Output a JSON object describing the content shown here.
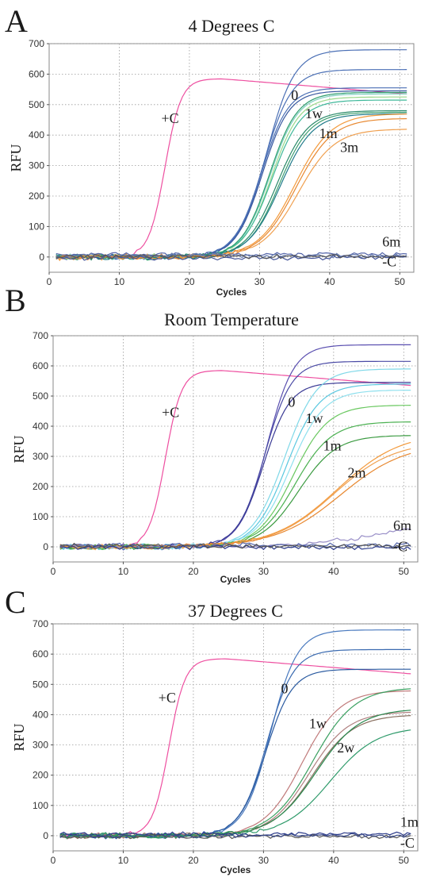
{
  "chart_data": [
    {
      "type": "line",
      "panel_letter": "A",
      "title": "4 Degrees C",
      "xlabel": "Cycles",
      "ylabel": "RFU",
      "xlim": [
        0,
        52
      ],
      "ylim": [
        -50,
        700
      ],
      "xticks": [
        0,
        10,
        20,
        30,
        40,
        50
      ],
      "yticks": [
        0,
        100,
        200,
        300,
        400,
        500,
        600,
        700
      ],
      "grid": true,
      "annotations": [
        {
          "text": "+C",
          "x": 16.0,
          "y": 440
        },
        {
          "text": "0",
          "x": 34.5,
          "y": 515
        },
        {
          "text": "1w",
          "x": 36.5,
          "y": 455
        },
        {
          "text": "1m",
          "x": 38.5,
          "y": 390
        },
        {
          "text": "3m",
          "x": 41.5,
          "y": 345
        },
        {
          "text": "6m",
          "x": 47.5,
          "y": 35
        },
        {
          "text": "-C",
          "x": 47.5,
          "y": -30
        }
      ],
      "series": [
        {
          "group": "+C",
          "color": "#ee4fa0",
          "ct": 16.5,
          "plateau": 585,
          "slope": 1.15,
          "drift": -50
        },
        {
          "group": "0",
          "color": "#4a6fb5",
          "ct": 31.0,
          "plateau": 680,
          "slope": 2.0
        },
        {
          "group": "0",
          "color": "#4a6fb5",
          "ct": 30.6,
          "plateau": 615,
          "slope": 2.0
        },
        {
          "group": "0",
          "color": "#4a6fb5",
          "ct": 30.3,
          "plateau": 555,
          "slope": 1.9
        },
        {
          "group": "0",
          "color": "#3a5aa0",
          "ct": 30.4,
          "plateau": 545,
          "slope": 1.9
        },
        {
          "group": "1w",
          "color": "#7ecfc0",
          "ct": 31.5,
          "plateau": 535,
          "slope": 2.0
        },
        {
          "group": "1w",
          "color": "#9ad88a",
          "ct": 31.7,
          "plateau": 525,
          "slope": 2.0
        },
        {
          "group": "1w",
          "color": "#3fb89a",
          "ct": 31.8,
          "plateau": 515,
          "slope": 2.1
        },
        {
          "group": "1w",
          "color": "#2f9e6e",
          "ct": 31.4,
          "plateau": 540,
          "slope": 2.0
        },
        {
          "group": "1m",
          "color": "#2a8a6a",
          "ct": 32.5,
          "plateau": 480,
          "slope": 2.2
        },
        {
          "group": "1m",
          "color": "#3ea070",
          "ct": 32.8,
          "plateau": 475,
          "slope": 2.2
        },
        {
          "group": "1m",
          "color": "#1f7a8a",
          "ct": 33.0,
          "plateau": 470,
          "slope": 2.3
        },
        {
          "group": "3m",
          "color": "#f39a3c",
          "ct": 35.0,
          "plateau": 470,
          "slope": 2.6
        },
        {
          "group": "3m",
          "color": "#f0a050",
          "ct": 35.5,
          "plateau": 420,
          "slope": 2.6
        },
        {
          "group": "3m",
          "color": "#e88830",
          "ct": 35.2,
          "plateau": 455,
          "slope": 2.6
        },
        {
          "group": "6m",
          "color": "#5566aa",
          "flat": 8
        },
        {
          "group": "6m",
          "color": "#6a7fb0",
          "flat": 4
        },
        {
          "group": "-C",
          "color": "#445599",
          "flat": -3
        },
        {
          "group": "-C",
          "color": "#555555",
          "flat": 2
        }
      ]
    },
    {
      "type": "line",
      "panel_letter": "B",
      "title": "Room Temperature",
      "xlabel": "Cycles",
      "ylabel": "RFU",
      "xlim": [
        0,
        52
      ],
      "ylim": [
        -50,
        700
      ],
      "xticks": [
        0,
        10,
        20,
        30,
        40,
        50
      ],
      "yticks": [
        0,
        100,
        200,
        300,
        400,
        500,
        600,
        700
      ],
      "grid": true,
      "annotations": [
        {
          "text": "+C",
          "x": 15.5,
          "y": 430
        },
        {
          "text": "0",
          "x": 33.5,
          "y": 465
        },
        {
          "text": "1w",
          "x": 36.0,
          "y": 410
        },
        {
          "text": "1m",
          "x": 38.5,
          "y": 320
        },
        {
          "text": "2m",
          "x": 42.0,
          "y": 230
        },
        {
          "text": "6m",
          "x": 48.5,
          "y": 55
        },
        {
          "text": "-C",
          "x": 48.5,
          "y": -15
        }
      ],
      "series": [
        {
          "group": "+C",
          "color": "#ee4fa0",
          "ct": 16.0,
          "plateau": 585,
          "slope": 1.15,
          "drift": -50
        },
        {
          "group": "0",
          "color": "#5a4fb0",
          "ct": 30.5,
          "plateau": 670,
          "slope": 1.9
        },
        {
          "group": "0",
          "color": "#4a4aa5",
          "ct": 30.2,
          "plateau": 615,
          "slope": 1.9
        },
        {
          "group": "0",
          "color": "#3a3a95",
          "ct": 30.0,
          "plateau": 545,
          "slope": 1.9
        },
        {
          "group": "1w",
          "color": "#7fd8e8",
          "ct": 33.0,
          "plateau": 590,
          "slope": 2.3
        },
        {
          "group": "1w",
          "color": "#5ac8e0",
          "ct": 33.3,
          "plateau": 540,
          "slope": 2.3
        },
        {
          "group": "1w",
          "color": "#8fe0ee",
          "ct": 33.8,
          "plateau": 520,
          "slope": 2.4
        },
        {
          "group": "1m",
          "color": "#6ac860",
          "ct": 34.2,
          "plateau": 470,
          "slope": 2.5
        },
        {
          "group": "1m",
          "color": "#4ab050",
          "ct": 34.5,
          "plateau": 415,
          "slope": 2.6
        },
        {
          "group": "1m",
          "color": "#3a9a40",
          "ct": 35.0,
          "plateau": 370,
          "slope": 2.7
        },
        {
          "group": "2m",
          "color": "#f39a3c",
          "ct": 40.5,
          "plateau": 380,
          "slope": 4.5
        },
        {
          "group": "2m",
          "color": "#f0a050",
          "ct": 40.0,
          "plateau": 350,
          "slope": 4.3
        },
        {
          "group": "2m",
          "color": "#e88830",
          "ct": 41.0,
          "plateau": 345,
          "slope": 4.6
        },
        {
          "group": "6m",
          "color": "#9a90c8",
          "ramp": [
            25,
            60
          ]
        },
        {
          "group": "6m",
          "color": "#5566aa",
          "flat": 6
        },
        {
          "group": "-C",
          "color": "#2a3a8a",
          "flat": -2
        },
        {
          "group": "-C",
          "color": "#555555",
          "flat": 3
        }
      ]
    },
    {
      "type": "line",
      "panel_letter": "C",
      "title": "37 Degrees C",
      "xlabel": "Cycles",
      "ylabel": "RFU",
      "xlim": [
        0,
        52
      ],
      "ylim": [
        -50,
        700
      ],
      "xticks": [
        0,
        10,
        20,
        30,
        40,
        50
      ],
      "yticks": [
        0,
        100,
        200,
        300,
        400,
        500,
        600,
        700
      ],
      "grid": true,
      "annotations": [
        {
          "text": "+C",
          "x": 15.0,
          "y": 440
        },
        {
          "text": "0",
          "x": 32.5,
          "y": 470
        },
        {
          "text": "1w",
          "x": 36.5,
          "y": 355
        },
        {
          "text": "2w",
          "x": 40.5,
          "y": 275
        },
        {
          "text": "1m",
          "x": 49.5,
          "y": 30
        },
        {
          "text": "-C",
          "x": 49.5,
          "y": -40
        }
      ],
      "series": [
        {
          "group": "+C",
          "color": "#ee4fa0",
          "ct": 16.5,
          "plateau": 585,
          "slope": 1.15,
          "drift": -50
        },
        {
          "group": "0",
          "color": "#4a7abf",
          "ct": 31.0,
          "plateau": 680,
          "slope": 1.9
        },
        {
          "group": "0",
          "color": "#3a6ab0",
          "ct": 30.5,
          "plateau": 615,
          "slope": 1.9
        },
        {
          "group": "0",
          "color": "#2a5aa0",
          "ct": 30.3,
          "plateau": 550,
          "slope": 1.9
        },
        {
          "group": "1w",
          "color": "#c07a7a",
          "ct": 35.5,
          "plateau": 480,
          "slope": 2.7
        },
        {
          "group": "1w",
          "color": "#b08080",
          "ct": 36.5,
          "plateau": 410,
          "slope": 2.8
        },
        {
          "group": "1w",
          "color": "#8a7060",
          "ct": 37.0,
          "plateau": 400,
          "slope": 2.9
        },
        {
          "group": "2w",
          "color": "#3aa060",
          "ct": 37.0,
          "plateau": 490,
          "slope": 3.0
        },
        {
          "group": "2w",
          "color": "#2a8a50",
          "ct": 37.5,
          "plateau": 420,
          "slope": 3.1
        },
        {
          "group": "2w",
          "color": "#2e9a6a",
          "ct": 39.5,
          "plateau": 360,
          "slope": 3.3
        },
        {
          "group": "1m",
          "color": "#2a3a8a",
          "flat": 5
        },
        {
          "group": "-C",
          "color": "#555555",
          "flat": -3
        },
        {
          "group": "-C",
          "color": "#3a4a8a",
          "flat": 1
        }
      ]
    }
  ]
}
